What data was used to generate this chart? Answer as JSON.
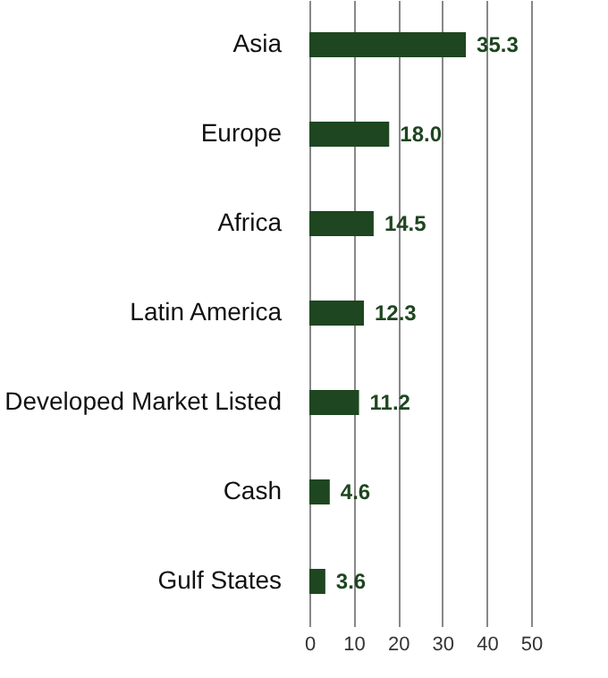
{
  "chart_data": {
    "type": "bar",
    "orientation": "horizontal",
    "categories": [
      "Asia",
      "Europe",
      "Africa",
      "Latin America",
      "Developed Market Listed",
      "Cash",
      "Gulf States"
    ],
    "values": [
      35.3,
      18.0,
      14.5,
      12.3,
      11.2,
      4.6,
      3.6
    ],
    "value_labels": [
      "35.3",
      "18.0",
      "14.5",
      "12.3",
      "11.2",
      "4.6",
      "3.6"
    ],
    "color": "#1e4620",
    "xlim": [
      0,
      50
    ],
    "xticks": [
      0,
      10,
      20,
      30,
      40,
      50
    ],
    "grid": "x"
  }
}
